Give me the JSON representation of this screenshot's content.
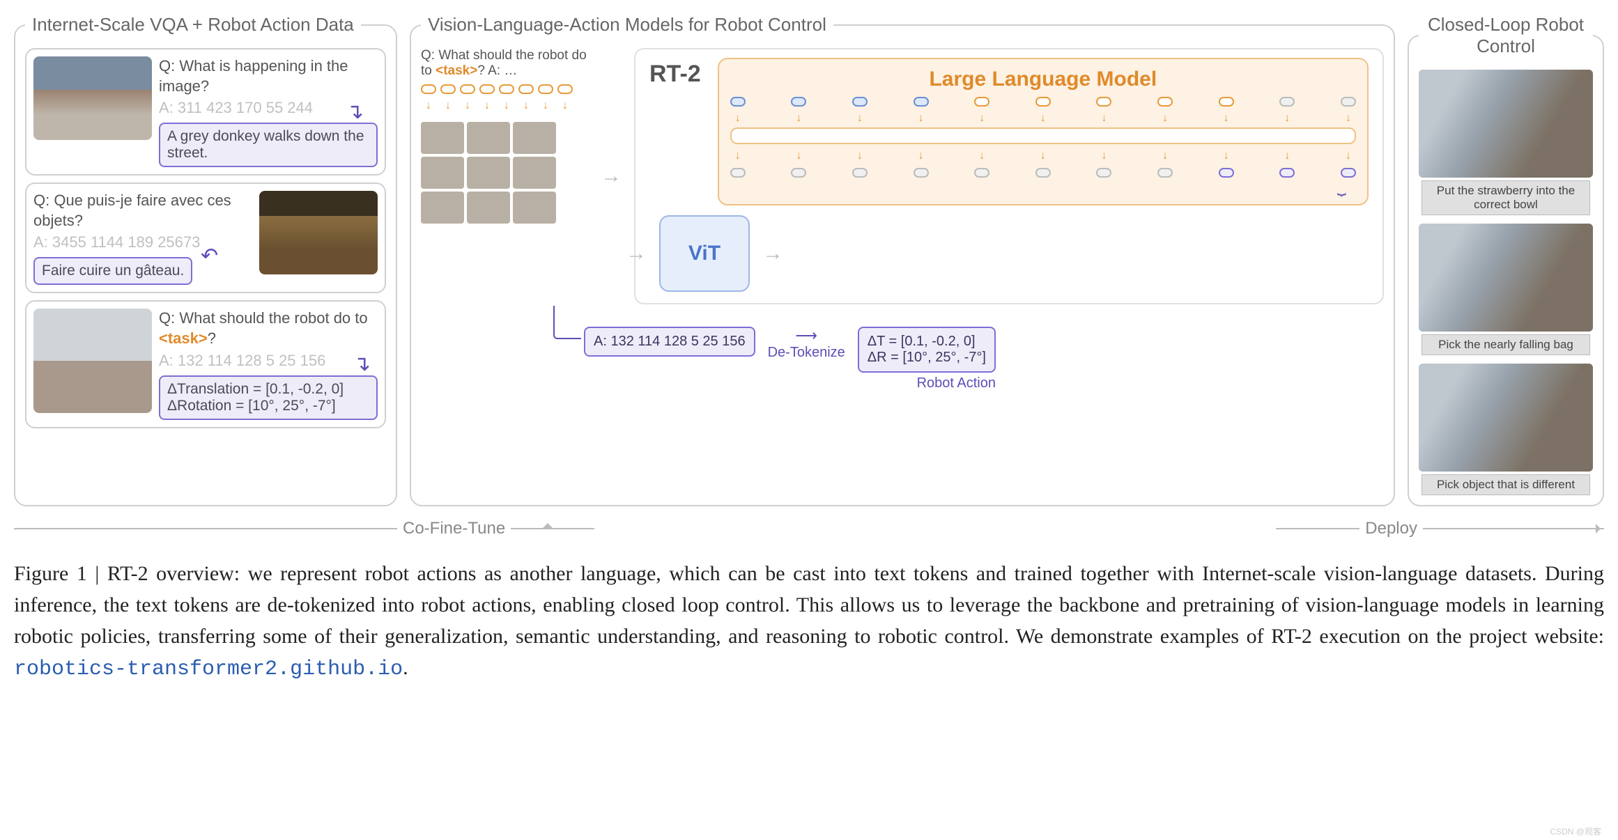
{
  "panels": {
    "left_title": "Internet-Scale VQA + Robot Action Data",
    "mid_title": "Vision-Language-Action Models for Robot Control",
    "right_title": "Closed-Loop Robot Control"
  },
  "vqa": [
    {
      "q": "Q: What is happening in the image?",
      "a_tokens": "A: 311 423 170 55 244",
      "a_text": "A grey donkey walks down the street."
    },
    {
      "q": "Q: Que puis-je faire avec ces objets?",
      "a_tokens": "A: 3455 1144 189 25673",
      "a_text": "Faire cuire un gâteau."
    },
    {
      "q_pre": "Q: What should the robot do to ",
      "q_task": "<task>",
      "q_post": "?",
      "a_tokens": "A: 132 114 128 5 25 156",
      "a_text1": "ΔTranslation = [0.1, -0.2, 0]",
      "a_text2": "ΔRotation = [10°, 25°, -7°]"
    }
  ],
  "mid": {
    "prompt_pre": "Q: What should the robot do to ",
    "prompt_task": "<task>",
    "prompt_post": "? A: …",
    "rt2": "RT-2",
    "llm": "Large Language Model",
    "vit": "ViT",
    "answer_tokens": "A: 132 114 128 5 25 156",
    "detok": "De-Tokenize",
    "dt": "ΔT = [0.1, -0.2, 0]",
    "dr": "ΔR = [10°, 25°, -7°]",
    "action_label": "Robot Action",
    "coft": "Co-Fine-Tune",
    "deploy": "Deploy",
    "token_colors": {
      "orange": "#e79b3a",
      "blue": "#6a8fd8",
      "gray": "#bbbbbb",
      "purple": "#7c6fd6"
    },
    "input_row": [
      "o",
      "o",
      "o",
      "o",
      "o",
      "o",
      "o",
      "o"
    ],
    "llm_row_top": [
      "b",
      "b",
      "b",
      "b",
      "o",
      "o",
      "o",
      "o",
      "o",
      "g",
      "g"
    ],
    "llm_row_bot": [
      "g",
      "g",
      "g",
      "g",
      "g",
      "g",
      "g",
      "g",
      "p",
      "p",
      "p"
    ]
  },
  "right": [
    "Put the strawberry into the correct bowl",
    "Pick the nearly falling bag",
    "Pick object that is different"
  ],
  "caption": {
    "lead": "Figure 1 | RT-2 overview:",
    "body": " we represent robot actions as another language, which can be cast into text tokens and trained together with Internet-scale vision-language datasets. During inference, the text tokens are de-tokenized into robot actions, enabling closed loop control. This allows us to leverage the backbone and pretraining of vision-language models in learning robotic policies, transferring some of their generalization, semantic understanding, and reasoning to robotic control. We demonstrate examples of RT-2 execution on the project website: ",
    "url": "robotics-transformer2.github.io",
    "tail": "."
  },
  "watermark": "CSDN @观客",
  "colors": {
    "panel_border": "#d0d0d0",
    "purple": "#7c6fd6",
    "purple_fill": "#efecf9",
    "orange": "#e08a2a",
    "blue": "#4a74c9"
  }
}
